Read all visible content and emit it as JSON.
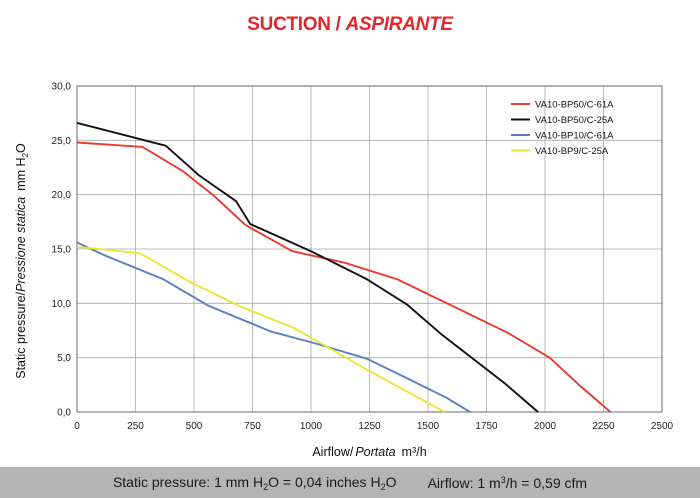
{
  "title": {
    "part1": "SUCTION /",
    "part2": "ASPIRANTE"
  },
  "footer": {
    "pressure_a": "Static pressure: 1 mm H",
    "pressure_sub1": "2",
    "pressure_b": "O = 0,04 inches H",
    "pressure_sub2": "2",
    "pressure_c": "O",
    "airflow_a": "Airflow: 1 m",
    "airflow_sup": "3",
    "airflow_b": "/h = 0,59 cfm"
  },
  "colors": {
    "grid": "#a8a8a8",
    "axis": "#6a6a6a"
  },
  "chart_data": {
    "type": "line",
    "xlabel": {
      "main": "Airflow/",
      "italic": "Portata",
      "unit": "m³/h"
    },
    "ylabel": {
      "main": "Static pressure/",
      "italic": "Pressione statica",
      "unit_a": "mm H",
      "unit_sub": "2",
      "unit_b": "O"
    },
    "xlim": [
      0,
      2500
    ],
    "ylim": [
      0,
      30
    ],
    "x_ticks": [
      "0",
      "250",
      "500",
      "750",
      "1000",
      "1250",
      "1500",
      "1750",
      "2000",
      "2250",
      "2500"
    ],
    "y_ticks": [
      "0,0",
      "5,0",
      "10,0",
      "15,0",
      "20,0",
      "25,0",
      "30,0"
    ],
    "grid": true,
    "legend_position": "top-right",
    "series": [
      {
        "name": "VA10-BP50/C-61A",
        "color": "#e63c2e",
        "points": [
          [
            0,
            24.8
          ],
          [
            280,
            24.4
          ],
          [
            450,
            22.2
          ],
          [
            580,
            20.0
          ],
          [
            720,
            17.2
          ],
          [
            920,
            14.8
          ],
          [
            1150,
            13.7
          ],
          [
            1370,
            12.2
          ],
          [
            1600,
            9.8
          ],
          [
            1840,
            7.3
          ],
          [
            2020,
            5.0
          ],
          [
            2150,
            2.4
          ],
          [
            2280,
            0.0
          ]
        ]
      },
      {
        "name": "VA10-BP50/C-25A",
        "color": "#111111",
        "points": [
          [
            0,
            26.6
          ],
          [
            200,
            25.5
          ],
          [
            380,
            24.5
          ],
          [
            520,
            21.8
          ],
          [
            680,
            19.4
          ],
          [
            740,
            17.3
          ],
          [
            1000,
            14.8
          ],
          [
            1240,
            12.2
          ],
          [
            1410,
            9.9
          ],
          [
            1560,
            7.1
          ],
          [
            1830,
            2.6
          ],
          [
            1970,
            0.0
          ]
        ]
      },
      {
        "name": "VA10-BP10/C-61A",
        "color": "#5b7fbf",
        "points": [
          [
            0,
            15.6
          ],
          [
            120,
            14.4
          ],
          [
            370,
            12.2
          ],
          [
            560,
            9.8
          ],
          [
            830,
            7.4
          ],
          [
            1020,
            6.3
          ],
          [
            1240,
            4.9
          ],
          [
            1420,
            3.0
          ],
          [
            1580,
            1.3
          ],
          [
            1680,
            0.0
          ]
        ]
      },
      {
        "name": "VA10-BP9/C-25A",
        "color": "#ebe53a",
        "points": [
          [
            0,
            15.2
          ],
          [
            270,
            14.6
          ],
          [
            480,
            12.0
          ],
          [
            700,
            9.7
          ],
          [
            930,
            7.7
          ],
          [
            1230,
            4.0
          ],
          [
            1570,
            0.0
          ]
        ]
      }
    ]
  }
}
